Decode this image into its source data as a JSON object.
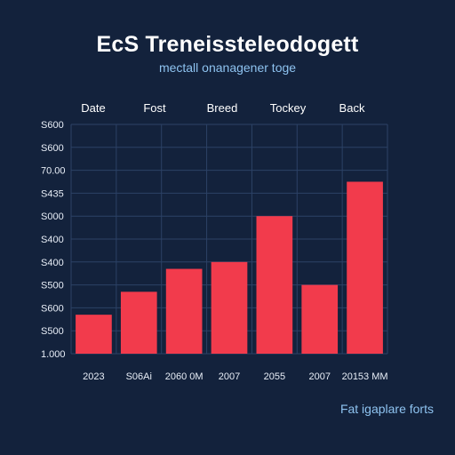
{
  "title": "EcS Treneissteleodogett",
  "subtitle": "mectall onanagener toge",
  "footnote": "Fat igaplare forts",
  "chart_data": {
    "type": "bar",
    "title": "EcS Treneissteleodogett",
    "subtitle": "mectall onanagener toge",
    "header_labels": [
      "Date",
      "Fost",
      "Breed",
      "Tockey",
      "Back"
    ],
    "categories": [
      "2023",
      "S06Ai",
      "2060 0M",
      "2007",
      "2055",
      "2007",
      "20153 MM"
    ],
    "y_tick_labels": [
      "S600",
      "S600",
      "70.00",
      "S435",
      "S000",
      "S400",
      "S400",
      "S500",
      "S600",
      "S500",
      "1.000"
    ],
    "ylim": [
      0,
      10
    ],
    "values": [
      1.7,
      2.7,
      3.7,
      4.0,
      6.0,
      3.0,
      7.5
    ],
    "bar_color": "#f23b4c",
    "grid": true,
    "xlabel": "",
    "ylabel": ""
  }
}
